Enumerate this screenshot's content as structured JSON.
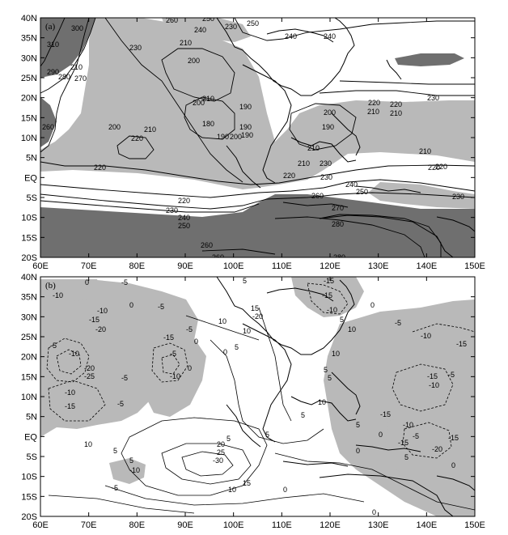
{
  "colors": {
    "shade_light": "#b9b9b9",
    "shade_dark": "#6f6f6f",
    "frame": "#000000",
    "background": "#ffffff"
  },
  "panels": [
    {
      "label": "(a)",
      "y_ticks": [
        "40N",
        "35N",
        "30N",
        "25N",
        "20N",
        "15N",
        "10N",
        "5N",
        "EQ",
        "5S",
        "10S",
        "15S",
        "20S"
      ],
      "x_ticks": [
        "60E",
        "70E",
        "80E",
        "90E",
        "100E",
        "110E",
        "120E",
        "130E",
        "140E",
        "150E"
      ],
      "contour_labels": [
        "260",
        "250",
        "300",
        "310",
        "240",
        "230",
        "210",
        "230",
        "250",
        "240",
        "200",
        "210",
        "290",
        "280",
        "270",
        "260",
        "200",
        "210",
        "190",
        "240",
        "230",
        "220",
        "210",
        "200",
        "210",
        "180",
        "190",
        "190",
        "200",
        "190",
        "220",
        "200",
        "210",
        "210",
        "220",
        "220",
        "230",
        "210",
        "230",
        "220",
        "240",
        "250",
        "260",
        "230",
        "220",
        "230",
        "240",
        "250",
        "270",
        "260",
        "280",
        "260",
        "280",
        "220",
        "220",
        "210",
        "190"
      ]
    },
    {
      "label": "(b)",
      "y_ticks": [
        "40N",
        "35N",
        "30N",
        "25N",
        "20N",
        "15N",
        "10N",
        "5N",
        "EQ",
        "5S",
        "10S",
        "15S",
        "20S"
      ],
      "x_ticks": [
        "60E",
        "70E",
        "80E",
        "90E",
        "100E",
        "110E",
        "120E",
        "130E",
        "140E",
        "150E"
      ],
      "contour_labels": [
        "-5",
        "-10",
        "0",
        "-5",
        "-15",
        "-10",
        "0",
        "-5",
        "-20",
        "-5",
        "-15",
        "-10",
        "-20",
        "-25",
        "-5",
        "-10",
        "-15",
        "-5",
        "-10",
        "-5",
        "0",
        "5",
        "10",
        "0",
        "15",
        "10",
        "5",
        "-20",
        "-15",
        "5",
        "10",
        "-15",
        "-10",
        "0",
        "-5",
        "-15",
        "-10",
        "5",
        "10",
        "-15",
        "-10",
        "-5",
        "-15",
        "-10",
        "-20",
        "-15",
        "5",
        "0",
        "-15",
        "-5",
        "0",
        "10",
        "5",
        "20",
        "25",
        "-30",
        "5",
        "15",
        "10",
        "5",
        "-10",
        "-5",
        "0",
        "5",
        "0",
        "5",
        "10",
        "5",
        "0",
        "5",
        "0"
      ]
    }
  ]
}
